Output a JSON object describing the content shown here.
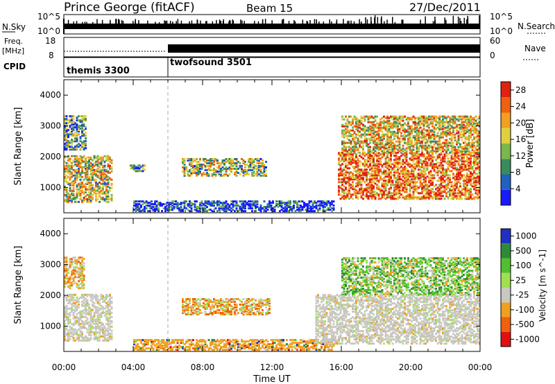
{
  "header": {
    "station": "Prince George (fitACF)",
    "beam": "Beam 15",
    "date": "27/Dec/2011"
  },
  "strip_labels": {
    "nsky": "N.Sky",
    "nsearch": "N.Search",
    "freq_top": "Freq.",
    "freq_unit": "[MHz]",
    "nave": "Nave",
    "cpid": "CPID"
  },
  "strip_ticks": {
    "nsky_hi": "10^5",
    "nsky_lo": "10^0",
    "nsearch_hi": "10^5",
    "nsearch_lo": "10^0",
    "freq_hi": "18",
    "freq_lo": "8",
    "nave_hi": "60",
    "nave_lo": "0"
  },
  "cpid_programs": [
    {
      "name": "themis 3300",
      "start_hour": 0,
      "end_hour": 6
    },
    {
      "name": "twofsound 3501",
      "start_hour": 6,
      "end_hour": 24
    }
  ],
  "chart_data": [
    {
      "type": "heatmap",
      "name": "power",
      "ylabel": "Slant Range [km]",
      "xlabel": "Time UT",
      "xlim": [
        0,
        24
      ],
      "ylim": [
        180,
        4500
      ],
      "xticks": [
        "00:00",
        "04:00",
        "08:00",
        "12:00",
        "16:00",
        "20:00",
        "00:00"
      ],
      "yticks": [
        "1000",
        "2000",
        "3000",
        "4000"
      ],
      "colorbar_label": "Power [dB]",
      "colorbar_ticks": [
        "4",
        "8",
        "12",
        "16",
        "20",
        "24",
        "28"
      ],
      "colorbar_range": [
        0,
        30
      ],
      "colors": [
        "#1a1aff",
        "#2060c0",
        "#3a8a5a",
        "#7ab84a",
        "#e0d040",
        "#f0a020",
        "#f06010",
        "#e02010"
      ],
      "regions": [
        {
          "t0": 0.0,
          "t1": 2.8,
          "r0": 500,
          "r1": 2000,
          "level": 0.55
        },
        {
          "t0": 0.0,
          "t1": 1.3,
          "r0": 2200,
          "r1": 3300,
          "level": 0.35
        },
        {
          "t0": 3.8,
          "t1": 4.6,
          "r0": 1500,
          "r1": 1700,
          "level": 0.3
        },
        {
          "t0": 6.8,
          "t1": 11.6,
          "r0": 1350,
          "r1": 1900,
          "level": 0.45
        },
        {
          "t0": 4.0,
          "t1": 15.5,
          "r0": 200,
          "r1": 520,
          "level": 0.12
        },
        {
          "t0": 15.8,
          "t1": 24.0,
          "r0": 600,
          "r1": 2100,
          "level": 0.8
        },
        {
          "t0": 16.0,
          "t1": 24.0,
          "r0": 2100,
          "r1": 3300,
          "level": 0.6
        }
      ]
    },
    {
      "type": "heatmap",
      "name": "velocity",
      "ylabel": "Slant Range [km]",
      "xlabel": "Time UT",
      "xlim": [
        0,
        24
      ],
      "ylim": [
        180,
        4500
      ],
      "xticks": [
        "00:00",
        "04:00",
        "08:00",
        "12:00",
        "16:00",
        "20:00",
        "00:00"
      ],
      "yticks": [
        "1000",
        "2000",
        "3000",
        "4000"
      ],
      "colorbar_label": "Velocity [m s^-1]",
      "colorbar_ticks": [
        "1000",
        "500",
        "100",
        "25",
        "-25",
        "-100",
        "-500",
        "-1000"
      ],
      "colors": [
        "#2030c0",
        "#2e8a3a",
        "#50c030",
        "#a0e050",
        "#c8c8c0",
        "#f0a020",
        "#f06010",
        "#e01010"
      ],
      "regions": [
        {
          "t0": 0.0,
          "t1": 2.8,
          "r0": 500,
          "r1": 2000,
          "level": "ground"
        },
        {
          "t0": 0.0,
          "t1": 1.2,
          "r0": 2200,
          "r1": 3200,
          "level": "away"
        },
        {
          "t0": 6.8,
          "t1": 11.8,
          "r0": 1350,
          "r1": 1850,
          "level": "away"
        },
        {
          "t0": 4.0,
          "t1": 15.5,
          "r0": 200,
          "r1": 520,
          "level": "away_light"
        },
        {
          "t0": 14.5,
          "t1": 24.0,
          "r0": 400,
          "r1": 2000,
          "level": "ground"
        },
        {
          "t0": 16.0,
          "t1": 24.0,
          "r0": 2000,
          "r1": 3200,
          "level": "toward"
        }
      ]
    }
  ]
}
